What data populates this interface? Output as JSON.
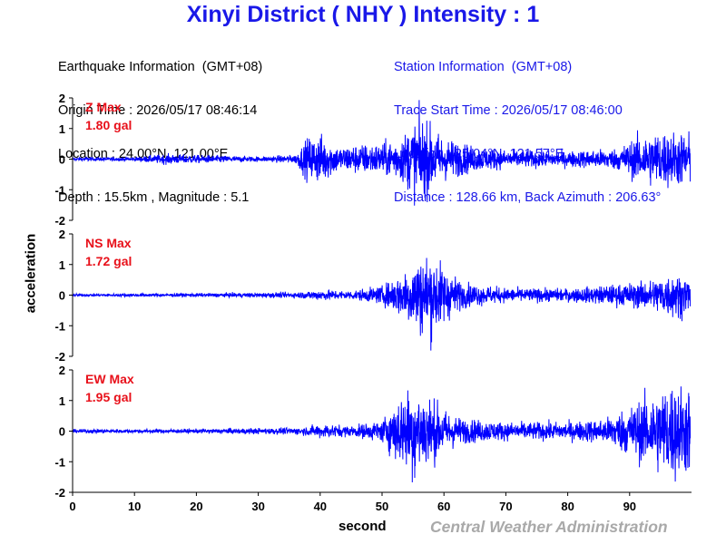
{
  "title": "Xinyi District ( NHY ) Intensity : 1",
  "earthquake_info": {
    "heading": "Earthquake Information  (GMT+08)",
    "origin_time": "Origin Time : 2026/05/17 08:46:14",
    "location": "Location : 24.00°N, 121.00°E",
    "depth_magnitude": "Depth : 15.5km , Magnitude : 5.1"
  },
  "station_info": {
    "heading": "Station Information  (GMT+08)",
    "trace_start": "Trace Start Time : 2026/05/17 08:46:00",
    "location": "Location : 25.04°N, 121.57°E",
    "distance": "Distance : 128.66 km, Back Azimuth : 206.63°"
  },
  "footer": {
    "credit": "Central Weather Administration"
  },
  "chart_data": {
    "type": "line",
    "xlabel": "second",
    "ylabel": "acceleration",
    "xlim": [
      0,
      100
    ],
    "xticks": [
      0,
      10,
      20,
      30,
      40,
      50,
      60,
      70,
      80,
      90
    ],
    "ylim": [
      -2,
      2
    ],
    "yticks": [
      2,
      1,
      0,
      -1,
      -2
    ],
    "series_color": "#0000ff",
    "panels": [
      {
        "name": "Z",
        "max_label": "Z Max",
        "max_value": "1.80 gal",
        "envelope": {
          "x": [
            0,
            10,
            15,
            30,
            36,
            38,
            40,
            43,
            45,
            50,
            53,
            56,
            60,
            65,
            70,
            80,
            88,
            92,
            95,
            100
          ],
          "amp": [
            0.05,
            0.06,
            0.14,
            0.07,
            0.12,
            0.6,
            0.7,
            0.35,
            0.4,
            0.45,
            0.6,
            1.2,
            0.6,
            0.35,
            0.25,
            0.22,
            0.3,
            0.7,
            0.8,
            0.75
          ]
        }
      },
      {
        "name": "NS",
        "max_label": "NS Max",
        "max_value": "1.72 gal",
        "envelope": {
          "x": [
            0,
            20,
            36,
            40,
            45,
            50,
            53,
            56,
            58,
            60,
            63,
            70,
            80,
            88,
            93,
            97,
            100
          ],
          "amp": [
            0.04,
            0.05,
            0.08,
            0.15,
            0.12,
            0.25,
            0.6,
            1.1,
            1.2,
            0.8,
            0.35,
            0.2,
            0.18,
            0.3,
            0.4,
            0.65,
            0.5
          ]
        }
      },
      {
        "name": "EW",
        "max_label": "EW Max",
        "max_value": "1.95 gal",
        "envelope": {
          "x": [
            0,
            20,
            37,
            40,
            45,
            50,
            52,
            55,
            57,
            60,
            63,
            70,
            80,
            86,
            90,
            93,
            97,
            100
          ],
          "amp": [
            0.05,
            0.06,
            0.1,
            0.2,
            0.15,
            0.3,
            0.8,
            1.3,
            1.1,
            0.6,
            0.35,
            0.25,
            0.25,
            0.35,
            0.7,
            1.0,
            1.4,
            1.2
          ]
        }
      }
    ]
  }
}
